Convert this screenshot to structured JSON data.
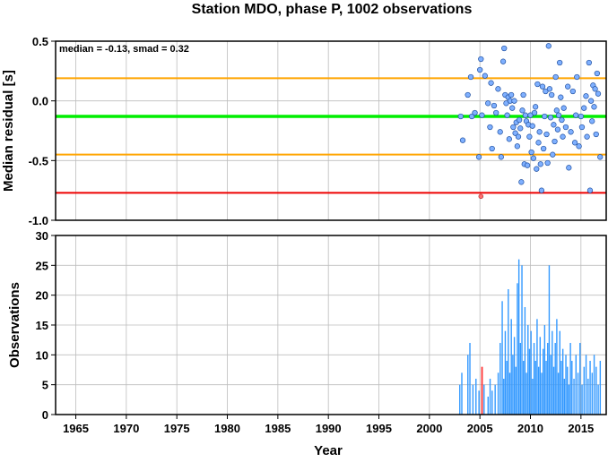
{
  "chart_data": [
    {
      "type": "scatter",
      "title": "Station MDO, phase P, 1002 observations",
      "annotation": "median = -0.13, smad = 0.32",
      "xlabel": "",
      "ylabel": "Median residual [s]",
      "xlim": [
        1963,
        2017.5
      ],
      "ylim": [
        -1.0,
        0.5
      ],
      "yticks": [
        {
          "value": 0.5,
          "label": "0.5"
        },
        {
          "value": 0.0,
          "label": "0.0"
        },
        {
          "value": -0.5,
          "label": "-0.5"
        },
        {
          "value": -1.0,
          "label": "-1.0"
        }
      ],
      "grid": true,
      "reference_lines": [
        {
          "y": 0.19,
          "color": "#ffa500"
        },
        {
          "y": -0.13,
          "color": "#00ee00"
        },
        {
          "y": -0.45,
          "color": "#ffa500"
        },
        {
          "y": -0.77,
          "color": "#ee0000"
        }
      ],
      "point_color": "#7fb0ff",
      "outlier_color": "#ff7070",
      "points": [
        {
          "x": 2003.1,
          "y": -0.13
        },
        {
          "x": 2003.3,
          "y": -0.33
        },
        {
          "x": 2003.8,
          "y": 0.05
        },
        {
          "x": 2004.1,
          "y": 0.2
        },
        {
          "x": 2004.2,
          "y": -0.13
        },
        {
          "x": 2004.5,
          "y": -0.1
        },
        {
          "x": 2004.9,
          "y": -0.47
        },
        {
          "x": 2005.0,
          "y": 0.26
        },
        {
          "x": 2005.1,
          "y": 0.35
        },
        {
          "x": 2005.2,
          "y": -0.12
        },
        {
          "x": 2005.5,
          "y": 0.21
        },
        {
          "x": 2005.8,
          "y": -0.02
        },
        {
          "x": 2006.0,
          "y": -0.22
        },
        {
          "x": 2006.1,
          "y": 0.15
        },
        {
          "x": 2006.2,
          "y": -0.4
        },
        {
          "x": 2006.4,
          "y": -0.04
        },
        {
          "x": 2006.6,
          "y": -0.1
        },
        {
          "x": 2006.8,
          "y": 0.1
        },
        {
          "x": 2007.0,
          "y": -0.26
        },
        {
          "x": 2007.1,
          "y": -0.47
        },
        {
          "x": 2007.3,
          "y": 0.33
        },
        {
          "x": 2007.4,
          "y": 0.44
        },
        {
          "x": 2007.5,
          "y": 0.05
        },
        {
          "x": 2007.6,
          "y": -0.02
        },
        {
          "x": 2007.7,
          "y": -0.12
        },
        {
          "x": 2007.8,
          "y": 0.03
        },
        {
          "x": 2007.9,
          "y": -0.32
        },
        {
          "x": 2008.0,
          "y": 0.0
        },
        {
          "x": 2008.1,
          "y": 0.05
        },
        {
          "x": 2008.2,
          "y": -0.06
        },
        {
          "x": 2008.3,
          "y": -0.22
        },
        {
          "x": 2008.4,
          "y": 0.0
        },
        {
          "x": 2008.5,
          "y": -0.27
        },
        {
          "x": 2008.6,
          "y": -0.18
        },
        {
          "x": 2008.7,
          "y": -0.38
        },
        {
          "x": 2008.8,
          "y": -0.3
        },
        {
          "x": 2008.9,
          "y": -0.16
        },
        {
          "x": 2009.0,
          "y": -0.23
        },
        {
          "x": 2009.1,
          "y": -0.68
        },
        {
          "x": 2009.2,
          "y": -0.08
        },
        {
          "x": 2009.3,
          "y": 0.05
        },
        {
          "x": 2009.4,
          "y": -0.53
        },
        {
          "x": 2009.5,
          "y": -0.12
        },
        {
          "x": 2009.6,
          "y": -0.17
        },
        {
          "x": 2009.7,
          "y": -0.54
        },
        {
          "x": 2009.8,
          "y": -0.2
        },
        {
          "x": 2009.9,
          "y": -0.3
        },
        {
          "x": 2010.0,
          "y": -0.12
        },
        {
          "x": 2010.1,
          "y": -0.43
        },
        {
          "x": 2010.2,
          "y": -0.21
        },
        {
          "x": 2010.3,
          "y": -0.48
        },
        {
          "x": 2010.4,
          "y": -0.1
        },
        {
          "x": 2010.5,
          "y": -0.05
        },
        {
          "x": 2010.6,
          "y": -0.57
        },
        {
          "x": 2010.7,
          "y": 0.14
        },
        {
          "x": 2010.8,
          "y": -0.35
        },
        {
          "x": 2010.9,
          "y": -0.26
        },
        {
          "x": 2011.0,
          "y": -0.53
        },
        {
          "x": 2011.1,
          "y": -0.75
        },
        {
          "x": 2011.2,
          "y": 0.12
        },
        {
          "x": 2011.3,
          "y": -0.4
        },
        {
          "x": 2011.4,
          "y": -0.13
        },
        {
          "x": 2011.5,
          "y": 0.08
        },
        {
          "x": 2011.6,
          "y": -0.28
        },
        {
          "x": 2011.7,
          "y": -0.52
        },
        {
          "x": 2011.8,
          "y": 0.46
        },
        {
          "x": 2011.9,
          "y": 0.1
        },
        {
          "x": 2012.0,
          "y": -0.14
        },
        {
          "x": 2012.1,
          "y": 0.05
        },
        {
          "x": 2012.2,
          "y": -0.45
        },
        {
          "x": 2012.3,
          "y": -0.2
        },
        {
          "x": 2012.4,
          "y": -0.34
        },
        {
          "x": 2012.5,
          "y": 0.2
        },
        {
          "x": 2012.6,
          "y": -0.08
        },
        {
          "x": 2012.7,
          "y": -0.24
        },
        {
          "x": 2012.8,
          "y": -0.12
        },
        {
          "x": 2012.9,
          "y": 0.32
        },
        {
          "x": 2013.0,
          "y": 0.03
        },
        {
          "x": 2013.1,
          "y": -0.16
        },
        {
          "x": 2013.2,
          "y": -0.3
        },
        {
          "x": 2013.3,
          "y": -0.06
        },
        {
          "x": 2013.5,
          "y": -0.22
        },
        {
          "x": 2013.7,
          "y": 0.12
        },
        {
          "x": 2013.8,
          "y": -0.56
        },
        {
          "x": 2014.0,
          "y": -0.26
        },
        {
          "x": 2014.2,
          "y": 0.08
        },
        {
          "x": 2014.4,
          "y": -0.35
        },
        {
          "x": 2014.5,
          "y": -0.12
        },
        {
          "x": 2014.6,
          "y": 0.2
        },
        {
          "x": 2014.8,
          "y": -0.38
        },
        {
          "x": 2015.0,
          "y": -0.13
        },
        {
          "x": 2015.1,
          "y": -0.22
        },
        {
          "x": 2015.3,
          "y": -0.06
        },
        {
          "x": 2015.5,
          "y": 0.04
        },
        {
          "x": 2015.6,
          "y": -0.3
        },
        {
          "x": 2015.8,
          "y": 0.32
        },
        {
          "x": 2015.9,
          "y": -0.75
        },
        {
          "x": 2016.0,
          "y": 0.0
        },
        {
          "x": 2016.1,
          "y": -0.17
        },
        {
          "x": 2016.2,
          "y": 0.13
        },
        {
          "x": 2016.3,
          "y": -0.05
        },
        {
          "x": 2016.5,
          "y": -0.28
        },
        {
          "x": 2016.6,
          "y": 0.23
        },
        {
          "x": 2016.7,
          "y": 0.06
        },
        {
          "x": 2016.9,
          "y": -0.47
        },
        {
          "x": 2016.4,
          "y": 0.1
        }
      ],
      "outliers": [
        {
          "x": 2005.1,
          "y": -0.8
        }
      ]
    },
    {
      "type": "bar",
      "title": "",
      "xlabel": "Year",
      "ylabel": "Observations",
      "xlim": [
        1963,
        2017.5
      ],
      "ylim": [
        0,
        30
      ],
      "xticks": [
        1965,
        1970,
        1975,
        1980,
        1985,
        1990,
        1995,
        2000,
        2005,
        2010,
        2015
      ],
      "yticks": [
        0,
        5,
        10,
        15,
        20,
        25,
        30
      ],
      "grid": true,
      "bar_color": "#3399ff",
      "highlight_color": "#ff3333",
      "bars": [
        {
          "x": 2003.0,
          "value": 5
        },
        {
          "x": 2003.2,
          "value": 7
        },
        {
          "x": 2003.8,
          "value": 10
        },
        {
          "x": 2004.0,
          "value": 12
        },
        {
          "x": 2004.3,
          "value": 5
        },
        {
          "x": 2004.6,
          "value": 6
        },
        {
          "x": 2004.9,
          "value": 4
        },
        {
          "x": 2005.4,
          "value": 5
        },
        {
          "x": 2005.8,
          "value": 3
        },
        {
          "x": 2006.0,
          "value": 6
        },
        {
          "x": 2006.2,
          "value": 4
        },
        {
          "x": 2006.5,
          "value": 5
        },
        {
          "x": 2006.8,
          "value": 7
        },
        {
          "x": 2007.0,
          "value": 12
        },
        {
          "x": 2007.2,
          "value": 19
        },
        {
          "x": 2007.35,
          "value": 6
        },
        {
          "x": 2007.5,
          "value": 14
        },
        {
          "x": 2007.65,
          "value": 9
        },
        {
          "x": 2007.8,
          "value": 21
        },
        {
          "x": 2007.95,
          "value": 7
        },
        {
          "x": 2008.1,
          "value": 16
        },
        {
          "x": 2008.25,
          "value": 10
        },
        {
          "x": 2008.4,
          "value": 13
        },
        {
          "x": 2008.55,
          "value": 8
        },
        {
          "x": 2008.7,
          "value": 22
        },
        {
          "x": 2008.85,
          "value": 26
        },
        {
          "x": 2009.0,
          "value": 12
        },
        {
          "x": 2009.15,
          "value": 25
        },
        {
          "x": 2009.3,
          "value": 9
        },
        {
          "x": 2009.45,
          "value": 18
        },
        {
          "x": 2009.6,
          "value": 7
        },
        {
          "x": 2009.75,
          "value": 15
        },
        {
          "x": 2009.9,
          "value": 11
        },
        {
          "x": 2010.05,
          "value": 14
        },
        {
          "x": 2010.2,
          "value": 6
        },
        {
          "x": 2010.35,
          "value": 12
        },
        {
          "x": 2010.5,
          "value": 9
        },
        {
          "x": 2010.65,
          "value": 16
        },
        {
          "x": 2010.8,
          "value": 8
        },
        {
          "x": 2010.95,
          "value": 13
        },
        {
          "x": 2011.1,
          "value": 7
        },
        {
          "x": 2011.25,
          "value": 11
        },
        {
          "x": 2011.4,
          "value": 15
        },
        {
          "x": 2011.55,
          "value": 9
        },
        {
          "x": 2011.7,
          "value": 12
        },
        {
          "x": 2011.85,
          "value": 25
        },
        {
          "x": 2012.0,
          "value": 10
        },
        {
          "x": 2012.15,
          "value": 14
        },
        {
          "x": 2012.3,
          "value": 8
        },
        {
          "x": 2012.45,
          "value": 12
        },
        {
          "x": 2012.6,
          "value": 16
        },
        {
          "x": 2012.75,
          "value": 7
        },
        {
          "x": 2012.9,
          "value": 14
        },
        {
          "x": 2013.05,
          "value": 9
        },
        {
          "x": 2013.2,
          "value": 11
        },
        {
          "x": 2013.35,
          "value": 6
        },
        {
          "x": 2013.5,
          "value": 10
        },
        {
          "x": 2013.65,
          "value": 8
        },
        {
          "x": 2013.8,
          "value": 5
        },
        {
          "x": 2013.95,
          "value": 12
        },
        {
          "x": 2014.1,
          "value": 9
        },
        {
          "x": 2014.3,
          "value": 6
        },
        {
          "x": 2014.5,
          "value": 10
        },
        {
          "x": 2014.7,
          "value": 7
        },
        {
          "x": 2014.9,
          "value": 12
        },
        {
          "x": 2015.1,
          "value": 5
        },
        {
          "x": 2015.3,
          "value": 8
        },
        {
          "x": 2015.5,
          "value": 10
        },
        {
          "x": 2015.7,
          "value": 6
        },
        {
          "x": 2015.9,
          "value": 9
        },
        {
          "x": 2016.1,
          "value": 7
        },
        {
          "x": 2016.3,
          "value": 10
        },
        {
          "x": 2016.5,
          "value": 8
        },
        {
          "x": 2016.7,
          "value": 5
        },
        {
          "x": 2016.9,
          "value": 9
        }
      ],
      "highlight_bars": [
        {
          "x": 2005.2,
          "value": 8
        }
      ]
    }
  ]
}
